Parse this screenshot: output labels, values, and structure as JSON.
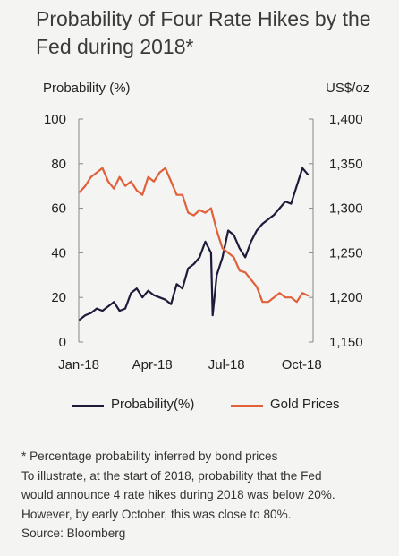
{
  "title": "Probability of Four Rate Hikes by the Fed during 2018*",
  "left_axis_label": "Probability (%)",
  "right_axis_label": "US$/oz",
  "footnotes": [
    "* Percentage probability inferred by bond prices",
    "To illustrate, at the start of 2018, probability that the Fed",
    "would announce 4 rate hikes during 2018 was below 20%.",
    "However, by early October, this was close to 80%.",
    "Source: Bloomberg"
  ],
  "colors": {
    "probability": "#1e1b3a",
    "gold": "#e0603a",
    "axis": "#888888"
  },
  "chart_data": {
    "type": "line",
    "title": "Probability of Four Rate Hikes by the Fed during 2018*",
    "xlabel": "",
    "x_ticks": [
      "Jan-18",
      "Apr-18",
      "Jul-18",
      "Oct-18"
    ],
    "y_left": {
      "label": "Probability (%)",
      "lim": [
        0,
        100
      ],
      "ticks": [
        "0",
        "20",
        "40",
        "60",
        "80",
        "100"
      ]
    },
    "y_right": {
      "label": "US$/oz",
      "lim": [
        1150,
        1400
      ],
      "ticks": [
        "1,150",
        "1,200",
        "1,250",
        "1,300",
        "1,350",
        "1,400"
      ]
    },
    "grid": false,
    "legend_position": "bottom",
    "series": [
      {
        "name": "Probability(%)",
        "axis": "left",
        "x": [
          "2018-01-02",
          "2018-01-09",
          "2018-01-16",
          "2018-01-23",
          "2018-01-30",
          "2018-02-06",
          "2018-02-13",
          "2018-02-20",
          "2018-02-27",
          "2018-03-06",
          "2018-03-13",
          "2018-03-20",
          "2018-03-27",
          "2018-04-03",
          "2018-04-10",
          "2018-04-17",
          "2018-04-24",
          "2018-05-01",
          "2018-05-08",
          "2018-05-15",
          "2018-05-22",
          "2018-05-29",
          "2018-06-05",
          "2018-06-12",
          "2018-06-14",
          "2018-06-19",
          "2018-06-26",
          "2018-07-03",
          "2018-07-10",
          "2018-07-17",
          "2018-07-24",
          "2018-07-31",
          "2018-08-07",
          "2018-08-14",
          "2018-08-21",
          "2018-08-28",
          "2018-09-04",
          "2018-09-11",
          "2018-09-18",
          "2018-09-25",
          "2018-10-02",
          "2018-10-09"
        ],
        "values": [
          10,
          12,
          13,
          15,
          14,
          16,
          18,
          14,
          15,
          22,
          24,
          20,
          23,
          21,
          20,
          19,
          17,
          26,
          24,
          33,
          35,
          38,
          45,
          40,
          12,
          30,
          38,
          50,
          48,
          42,
          38,
          45,
          50,
          53,
          55,
          57,
          60,
          63,
          62,
          70,
          78,
          75
        ]
      },
      {
        "name": "Gold Prices",
        "axis": "right",
        "x": [
          "2018-01-02",
          "2018-01-09",
          "2018-01-16",
          "2018-01-23",
          "2018-01-30",
          "2018-02-06",
          "2018-02-13",
          "2018-02-20",
          "2018-02-27",
          "2018-03-06",
          "2018-03-13",
          "2018-03-20",
          "2018-03-27",
          "2018-04-03",
          "2018-04-10",
          "2018-04-17",
          "2018-04-24",
          "2018-05-01",
          "2018-05-08",
          "2018-05-15",
          "2018-05-22",
          "2018-05-29",
          "2018-06-05",
          "2018-06-12",
          "2018-06-19",
          "2018-06-26",
          "2018-07-03",
          "2018-07-10",
          "2018-07-17",
          "2018-07-24",
          "2018-07-31",
          "2018-08-07",
          "2018-08-14",
          "2018-08-21",
          "2018-08-28",
          "2018-09-04",
          "2018-09-11",
          "2018-09-18",
          "2018-09-25",
          "2018-10-02",
          "2018-10-09"
        ],
        "values": [
          1318,
          1325,
          1335,
          1340,
          1345,
          1330,
          1322,
          1335,
          1325,
          1330,
          1320,
          1315,
          1335,
          1330,
          1340,
          1345,
          1330,
          1315,
          1315,
          1295,
          1292,
          1298,
          1295,
          1300,
          1275,
          1255,
          1250,
          1245,
          1230,
          1228,
          1220,
          1212,
          1195,
          1195,
          1200,
          1205,
          1200,
          1200,
          1195,
          1205,
          1202
        ]
      }
    ]
  }
}
